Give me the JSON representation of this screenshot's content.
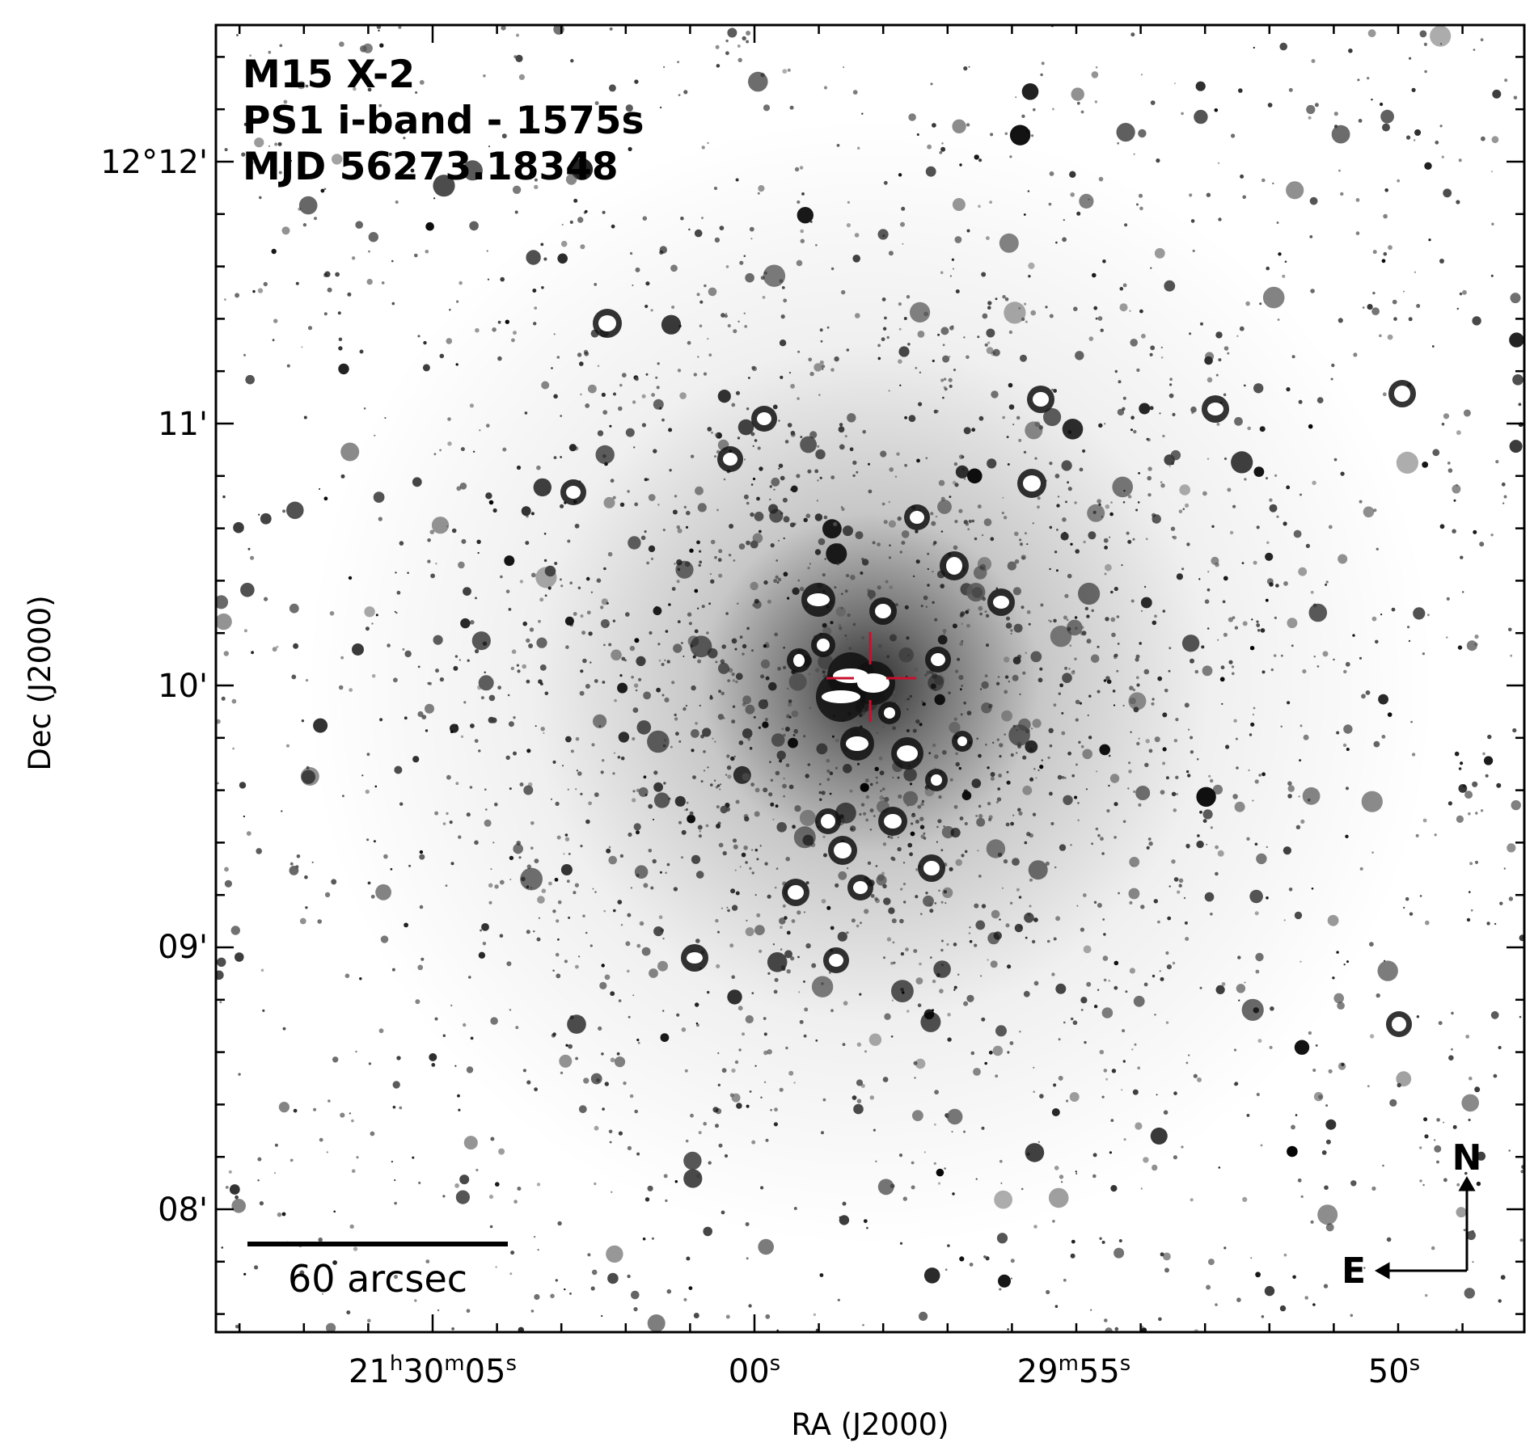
{
  "figure": {
    "annotation_lines": [
      "M15 X-2",
      "PS1 i-band - 1575s",
      "MJD 56273.18348"
    ],
    "x_axis_label": "RA (J2000)",
    "y_axis_label": "Dec (J2000)",
    "x_tick_labels": [
      [
        {
          "text": "21",
          "sup": false
        },
        {
          "text": "h",
          "sup": true
        },
        {
          "text": "30",
          "sup": false
        },
        {
          "text": "m",
          "sup": true
        },
        {
          "text": "05",
          "sup": false
        },
        {
          "text": "s",
          "sup": true
        }
      ],
      [
        {
          "text": "00",
          "sup": false
        },
        {
          "text": "s",
          "sup": true
        }
      ],
      [
        {
          "text": "29",
          "sup": false
        },
        {
          "text": "m",
          "sup": true
        },
        {
          "text": "55",
          "sup": false
        },
        {
          "text": "s",
          "sup": true
        }
      ],
      [
        {
          "text": "50",
          "sup": false
        },
        {
          "text": "s",
          "sup": true
        }
      ]
    ],
    "y_tick_labels": [
      "12°12'",
      "11'",
      "10'",
      "09'",
      "08'"
    ],
    "scale_bar_label": "60 arcsec",
    "compass": {
      "north": "N",
      "east": "E"
    }
  }
}
